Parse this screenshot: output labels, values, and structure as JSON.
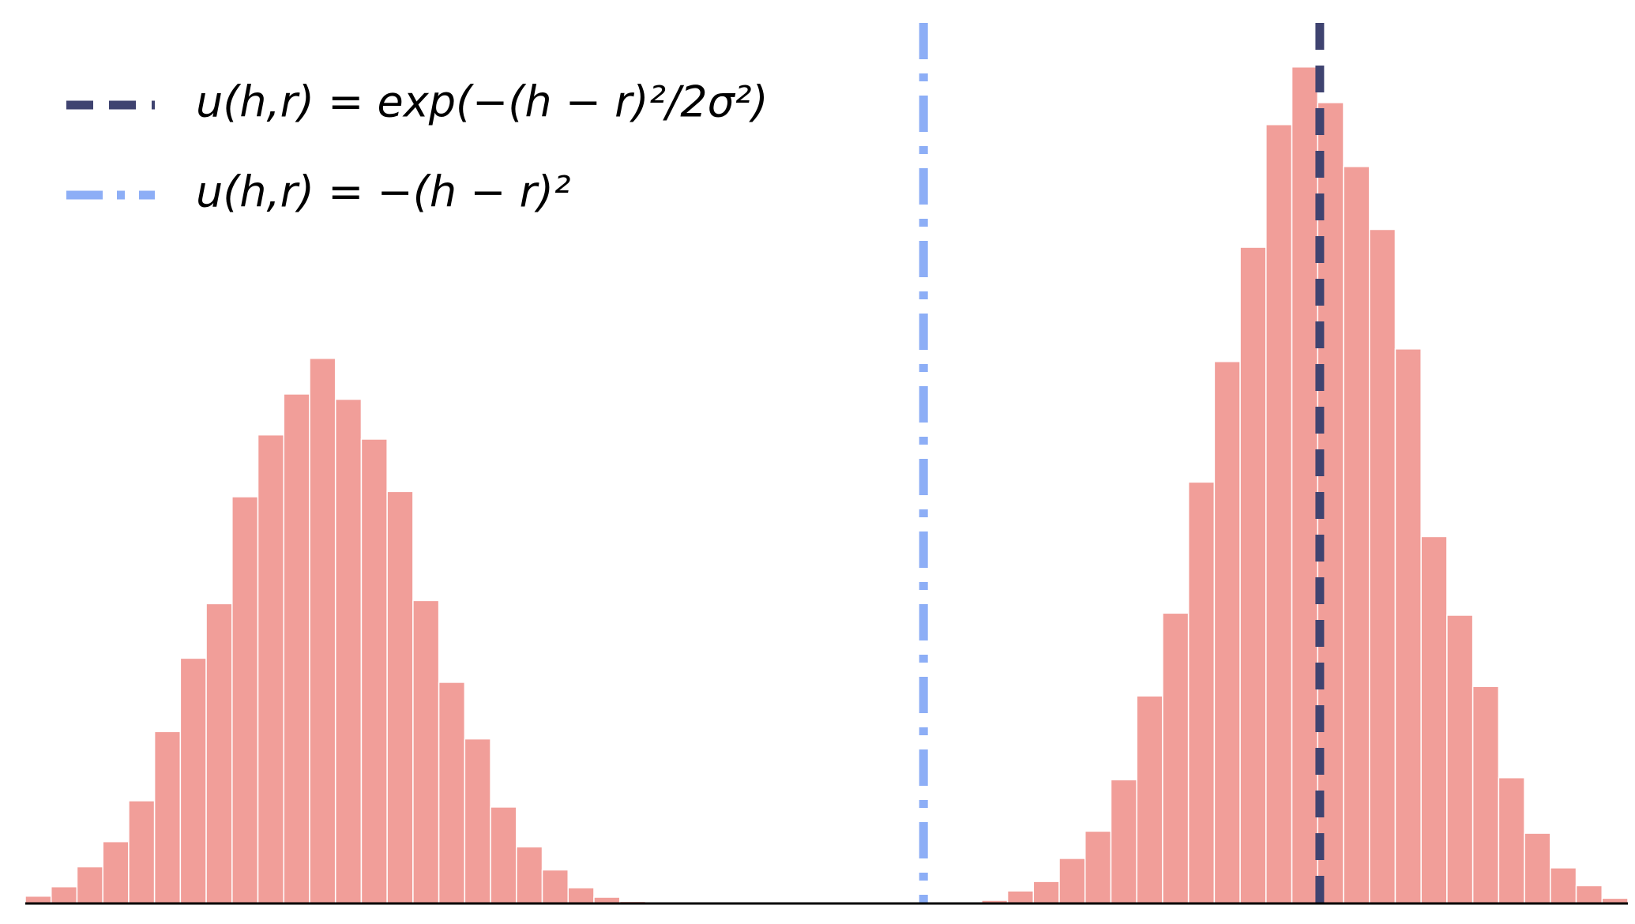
{
  "chart_data": {
    "type": "histogram",
    "bins": [
      0,
      1,
      2,
      3,
      4,
      5,
      6,
      7,
      8,
      9,
      10,
      11,
      12,
      13,
      14,
      15,
      16,
      17,
      18,
      19,
      20,
      21,
      22,
      23,
      24,
      25,
      26,
      27,
      28,
      29,
      30,
      31,
      32,
      33,
      34,
      35,
      36,
      37,
      38,
      39,
      40,
      41,
      42,
      43,
      44,
      45,
      46,
      47,
      48,
      49,
      50,
      51,
      52,
      53,
      54,
      55,
      56,
      57,
      58,
      59,
      60,
      61,
      62
    ],
    "values": [
      7,
      16,
      35,
      59,
      98,
      164,
      234,
      286,
      388,
      447,
      486,
      520,
      481,
      443,
      393,
      289,
      211,
      157,
      92,
      54,
      32,
      15,
      6,
      2,
      0,
      0,
      0,
      0,
      0,
      0,
      0,
      0,
      0,
      0,
      0,
      0,
      0,
      3,
      12,
      21,
      43,
      69,
      118,
      198,
      277,
      402,
      517,
      626,
      743,
      798,
      764,
      703,
      643,
      529,
      350,
      275,
      207,
      120,
      67,
      34,
      17,
      5
    ],
    "color": "#f19e99",
    "xlim": [
      0,
      62
    ],
    "ylim": [
      0,
      840
    ],
    "vlines": [
      {
        "name": "u(h,r) = exp(−(h − r)²/2σ²)",
        "x": 50.08,
        "color": "#3f4370",
        "style": "dashed"
      },
      {
        "name": "u(h,r) = −(h − r)²",
        "x": 34.75,
        "color": "#8daef6",
        "style": "dashdot"
      }
    ],
    "legend": "upper left"
  }
}
